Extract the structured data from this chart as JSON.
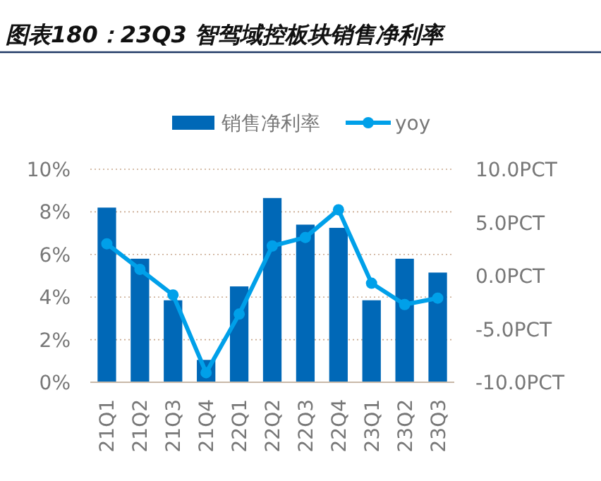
{
  "chart_data": {
    "type": "bar",
    "title": "图表180：23Q3 智驾域控板块销售净利率",
    "categories": [
      "21Q1",
      "21Q2",
      "21Q3",
      "21Q4",
      "22Q1",
      "22Q2",
      "22Q3",
      "22Q4",
      "23Q1",
      "23Q2",
      "23Q3"
    ],
    "series": [
      {
        "name": "销售净利率",
        "color": "#0068b7",
        "values": [
          8.2,
          5.8,
          3.85,
          1.05,
          4.5,
          8.65,
          7.4,
          7.25,
          3.85,
          5.8,
          5.15
        ]
      },
      {
        "name": "yoy",
        "type": "line",
        "axis": "y2",
        "color": "#00a0e9",
        "values": [
          3.0,
          0.6,
          -1.8,
          -9.1,
          -3.6,
          2.8,
          3.6,
          6.2,
          -0.7,
          -2.7,
          -2.1
        ]
      }
    ],
    "ylim": [
      0,
      10
    ],
    "yticks": [
      {
        "value": 0,
        "label": "0%"
      },
      {
        "value": 2,
        "label": "2%"
      },
      {
        "value": 4,
        "label": "4%"
      },
      {
        "value": 6,
        "label": "6%"
      },
      {
        "value": 8,
        "label": "8%"
      },
      {
        "value": 10,
        "label": "10%"
      }
    ],
    "y2lim": [
      -10,
      10
    ],
    "y2ticks": [
      {
        "value": -10,
        "label": "-10.0PCT"
      },
      {
        "value": -5,
        "label": "-5.0PCT"
      },
      {
        "value": 0,
        "label": "0.0PCT"
      },
      {
        "value": 5,
        "label": "5.0PCT"
      },
      {
        "value": 10,
        "label": "10.0PCT"
      }
    ],
    "grid": "y",
    "legend": "top",
    "marker": "circle"
  }
}
